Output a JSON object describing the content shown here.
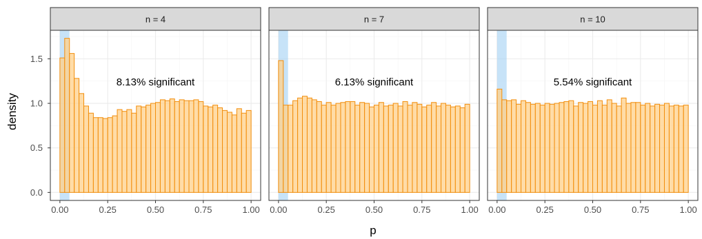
{
  "chart_data": {
    "type": "bar",
    "xlabel": "p",
    "ylabel": "density",
    "xlim": [
      -0.05,
      1.05
    ],
    "ylim": [
      -0.09,
      1.82
    ],
    "x_ticks": [
      "0.00",
      "0.25",
      "0.50",
      "0.75",
      "1.00"
    ],
    "y_ticks": [
      "0.0",
      "0.5",
      "1.0",
      "1.5"
    ],
    "grid": true,
    "bin_width": 0.025,
    "highlight_region": [
      0,
      0.05
    ],
    "colors": {
      "bar_fill": "#ffd08a",
      "bar_stroke": "#f28e0c",
      "highlight": "#a9d4f5",
      "strip_bg": "#d9d9d9",
      "panel_border": "#333333",
      "grid_major": "#ebebeb",
      "grid_minor": "#f5f5f5"
    },
    "panels": [
      {
        "strip": "n = 4",
        "annotation": "8.13% significant",
        "values": [
          1.51,
          1.73,
          1.56,
          1.28,
          1.11,
          0.97,
          0.89,
          0.84,
          0.84,
          0.83,
          0.84,
          0.86,
          0.93,
          0.91,
          0.93,
          0.89,
          0.97,
          0.96,
          0.98,
          1.0,
          1.01,
          1.04,
          1.03,
          1.05,
          1.02,
          1.04,
          1.03,
          1.03,
          1.04,
          1.02,
          0.97,
          0.96,
          0.98,
          0.95,
          0.92,
          0.9,
          0.87,
          0.94,
          0.89,
          0.92
        ]
      },
      {
        "strip": "n = 7",
        "annotation": "6.13% significant",
        "values": [
          1.48,
          0.98,
          0.98,
          1.03,
          1.06,
          1.08,
          1.06,
          1.04,
          1.02,
          0.98,
          1.01,
          0.98,
          1.0,
          1.01,
          1.02,
          1.02,
          0.98,
          1.01,
          1.0,
          0.96,
          0.98,
          1.01,
          0.97,
          0.98,
          1.0,
          0.97,
          1.02,
          0.98,
          1.01,
          0.99,
          0.96,
          0.98,
          1.01,
          0.97,
          1.0,
          0.98,
          0.96,
          0.97,
          0.95,
          0.99
        ]
      },
      {
        "strip": "n = 10",
        "annotation": "5.54% significant",
        "values": [
          1.16,
          1.04,
          1.03,
          1.04,
          0.99,
          1.03,
          1.01,
          0.99,
          1.0,
          0.98,
          1.0,
          0.99,
          1.0,
          1.01,
          1.02,
          1.03,
          0.97,
          1.01,
          1.0,
          1.02,
          0.98,
          1.03,
          0.98,
          1.04,
          1.0,
          0.97,
          1.06,
          1.0,
          1.01,
          1.01,
          0.98,
          1.0,
          0.97,
          0.99,
          0.98,
          1.0,
          0.97,
          0.98,
          0.97,
          0.98
        ]
      }
    ]
  }
}
